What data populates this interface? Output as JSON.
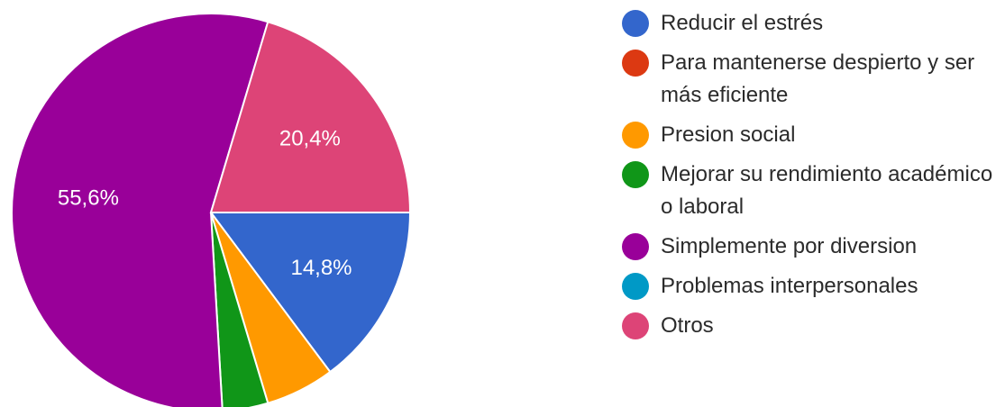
{
  "chart_data": {
    "type": "pie",
    "title": "",
    "legend_position": "right",
    "slices": [
      {
        "name": "Reducir el estrés",
        "value": 14.8,
        "label": "14,8%",
        "color": "#3366cc"
      },
      {
        "name": "Para mantenerse despierto y ser más eficiente",
        "value": 0,
        "label": "",
        "color": "#dc3912"
      },
      {
        "name": "Presion social",
        "value": 5.6,
        "label": "",
        "color": "#ff9900"
      },
      {
        "name": "Mejorar su rendimiento académico o laboral",
        "value": 3.7,
        "label": "",
        "color": "#109618"
      },
      {
        "name": "Simplemente por diversion",
        "value": 55.6,
        "label": "55,6%",
        "color": "#990099"
      },
      {
        "name": "Problemas interpersonales",
        "value": 0,
        "label": "",
        "color": "#0099c6"
      },
      {
        "name": "Otros",
        "value": 20.4,
        "label": "20,4%",
        "color": "#dd4477"
      }
    ]
  }
}
